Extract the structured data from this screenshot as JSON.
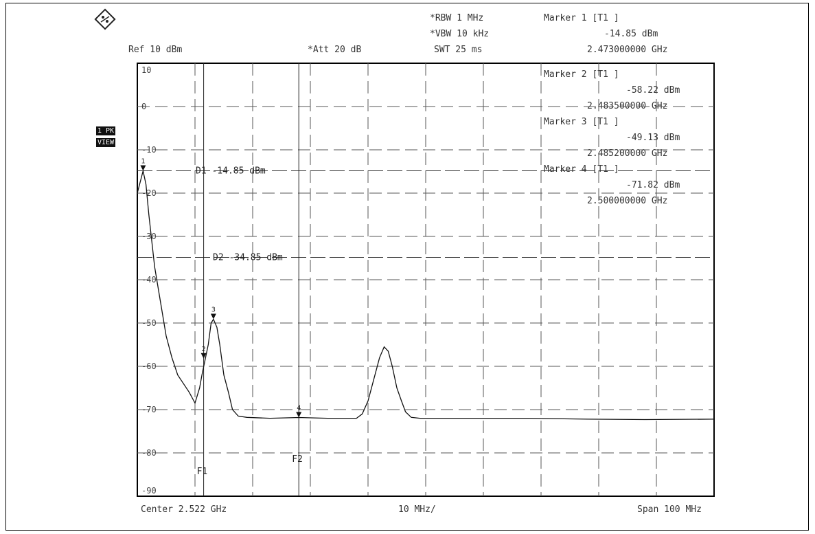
{
  "header": {
    "ref": "Ref  10 dBm",
    "att": "*Att  20 dB",
    "rbw": "*RBW 1 MHz",
    "vbw": "*VBW 10 kHz",
    "swt": "SWT 25 ms",
    "marker1_label": "Marker 1 [T1 ]",
    "marker1_level": "-14.85 dBm",
    "marker1_freq": "2.473000000 GHz"
  },
  "side_badges": {
    "trace": "1 PK",
    "mode": "VIEW"
  },
  "markers": [
    {
      "label": "Marker 2 [T1 ]",
      "level": "-58.22 dBm",
      "freq": "2.483500000 GHz"
    },
    {
      "label": "Marker 3 [T1 ]",
      "level": "-49.13 dBm",
      "freq": "2.485200000 GHz"
    },
    {
      "label": "Marker 4 [T1 ]",
      "level": "-71.82 dBm",
      "freq": "2.500000000 GHz"
    }
  ],
  "footer": {
    "center": "Center 2.522 GHz",
    "div": "10 MHz/",
    "span": "Span 100 MHz"
  },
  "chart_data": {
    "type": "line",
    "x_unit": "GHz",
    "ylim": [
      -90,
      10
    ],
    "xlim": [
      2.472,
      2.572
    ],
    "y_tick_labels": [
      "10",
      "0",
      "-10",
      "-20",
      "-30",
      "-40",
      "-50",
      "-60",
      "-70",
      "-80",
      "-90"
    ],
    "grid": true,
    "lines": [
      {
        "name": "D1",
        "label": "D1  -14.85 dBm",
        "y": -14.85
      },
      {
        "name": "D2",
        "label": "D2  -34.85 dBm",
        "y": -34.85
      }
    ],
    "vlines": [
      {
        "name": "F1",
        "label": "F1",
        "x": 2.4835
      },
      {
        "name": "F2",
        "label": "F2",
        "x": 2.5
      }
    ],
    "marker_points": [
      {
        "id": "1",
        "x": 2.473,
        "y": -14.85
      },
      {
        "id": "2",
        "x": 2.4835,
        "y": -58.22
      },
      {
        "id": "3",
        "x": 2.4852,
        "y": -49.13
      },
      {
        "id": "4",
        "x": 2.5,
        "y": -71.82
      }
    ],
    "series": [
      {
        "x": [
          2.472,
          2.473,
          2.4735,
          2.474,
          2.475,
          2.476,
          2.477,
          2.478,
          2.479,
          2.48,
          2.481,
          2.482,
          2.4828,
          2.4832,
          2.4838,
          2.4843,
          2.4848,
          2.4852,
          2.4858,
          2.4863,
          2.487,
          2.4878,
          2.4885,
          2.4895,
          2.491,
          2.495,
          2.5,
          2.505,
          2.51,
          2.511,
          2.512,
          2.513,
          2.514,
          2.5148,
          2.5155,
          2.5162,
          2.517,
          2.5178,
          2.5185,
          2.5195,
          2.521,
          2.53,
          2.54,
          2.55,
          2.56,
          2.572
        ],
        "y": [
          -20,
          -14.85,
          -18,
          -25,
          -37,
          -45,
          -53,
          -58,
          -62,
          -64,
          -66,
          -68.5,
          -65,
          -62,
          -58.22,
          -55,
          -50,
          -49.13,
          -51,
          -55,
          -62,
          -66,
          -70,
          -71.5,
          -71.8,
          -72,
          -71.82,
          -72,
          -72,
          -71,
          -68,
          -63,
          -58,
          -55.5,
          -56.5,
          -60,
          -65,
          -68,
          -70.5,
          -71.8,
          -72,
          -72,
          -72,
          -72.2,
          -72.3,
          -72.2
        ]
      }
    ]
  }
}
